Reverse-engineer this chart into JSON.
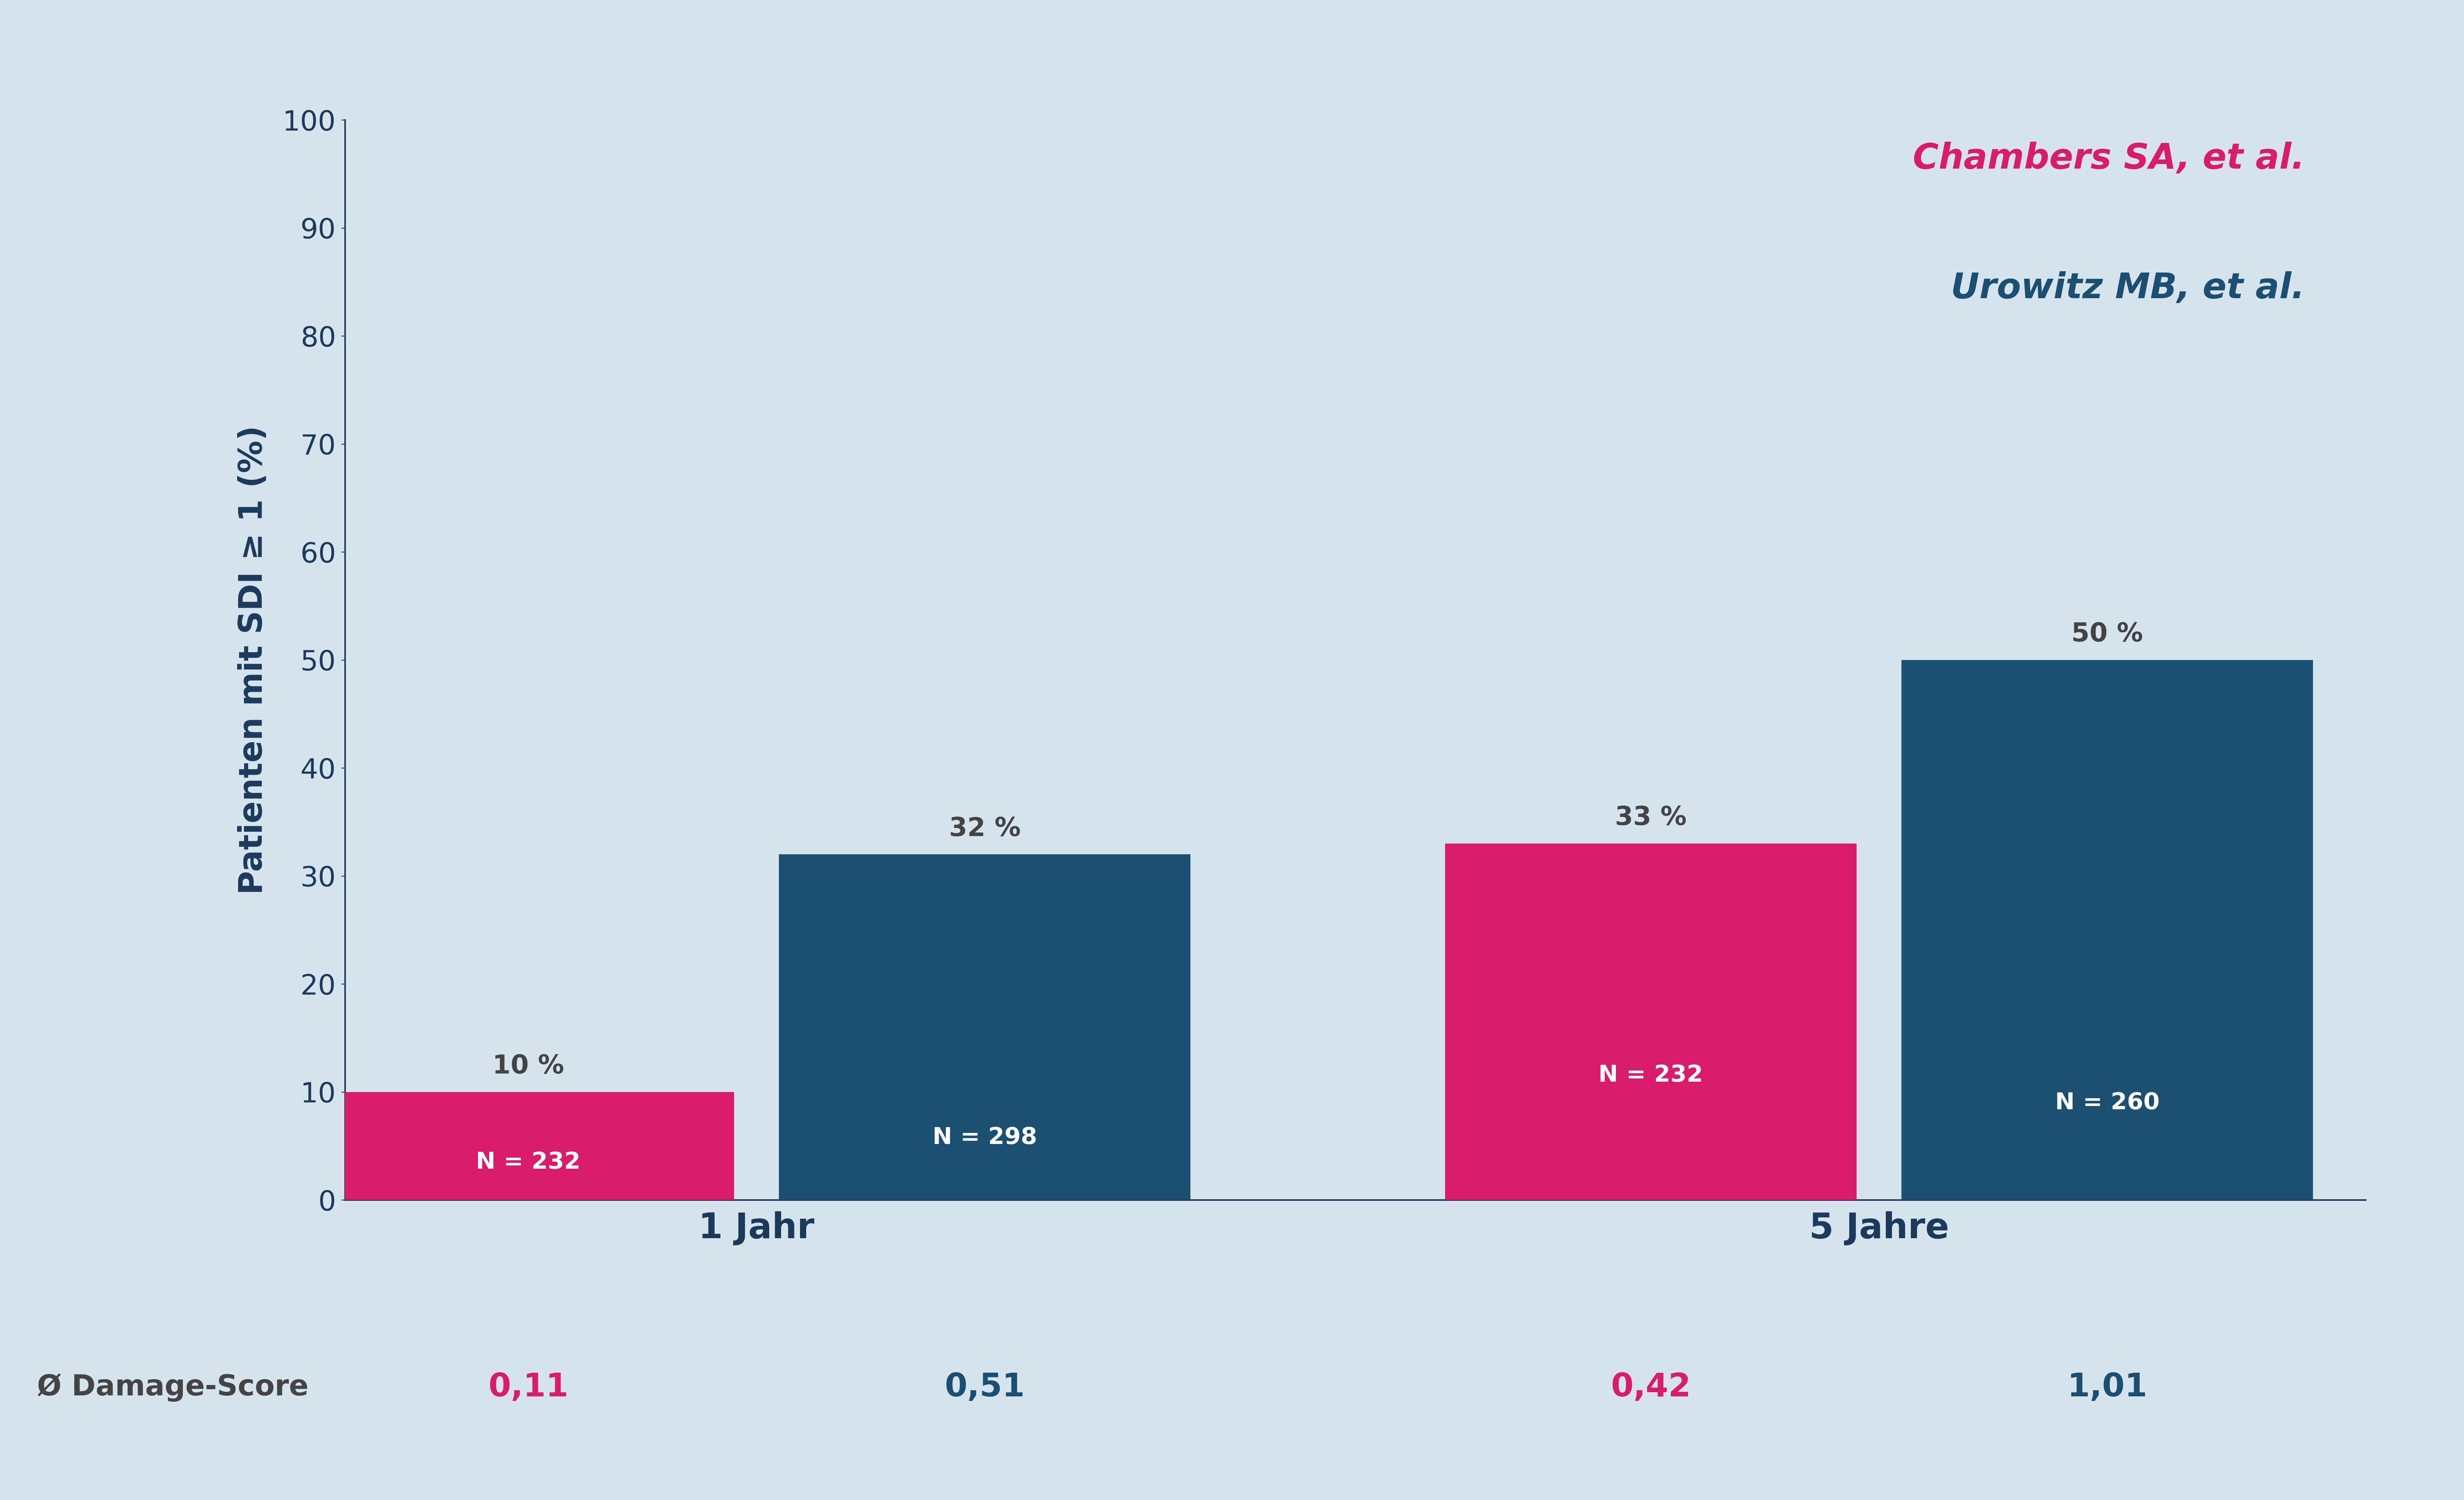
{
  "background_color": "#d6e4ee",
  "bar_width": 0.55,
  "group_positions": [
    1.0,
    2.5
  ],
  "group_labels": [
    "1 Jahr",
    "5 Jahre"
  ],
  "pink_values": [
    10,
    33
  ],
  "blue_values": [
    32,
    50
  ],
  "pink_color": "#d81b6a",
  "blue_color": "#1b4f72",
  "pink_n_labels": [
    "N = 232",
    "N = 232"
  ],
  "blue_n_labels": [
    "N = 298",
    "N = 260"
  ],
  "pink_pct_labels": [
    "10 %",
    "33 %"
  ],
  "blue_pct_labels": [
    "32 %",
    "50 %"
  ],
  "ylabel": "Patienten mit SDI ≥ 1 (%)",
  "ylim": [
    0,
    100
  ],
  "yticks": [
    0,
    10,
    20,
    30,
    40,
    50,
    60,
    70,
    80,
    90,
    100
  ],
  "legend_line1": "Chambers SA, et al.",
  "legend_line2": "Urowitz MB, et al.",
  "damage_score_label": "Ø Damage-Score",
  "damage_scores_pink": [
    "0,11",
    "0,42"
  ],
  "damage_scores_blue": [
    "0,51",
    "1,01"
  ],
  "axis_color": "#1b3a5c",
  "tick_label_color": "#1b3a5c",
  "group_label_color": "#1b3a5c",
  "damage_label_color": "#444444",
  "pct_label_color": "#444444",
  "n_label_font_size": 52,
  "pct_label_font_size": 58,
  "ylabel_font_size": 72,
  "xlabel_font_size": 78,
  "tick_font_size": 62,
  "legend_font_size": 78,
  "damage_score_font_size": 64,
  "damage_value_font_size": 72,
  "spine_linewidth": 3.5
}
